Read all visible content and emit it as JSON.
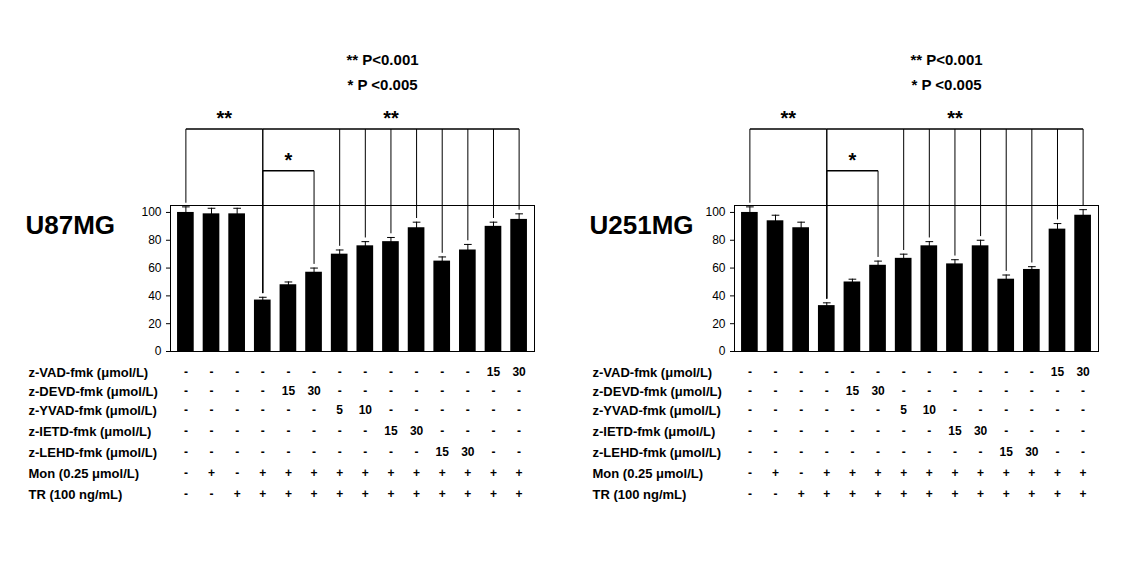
{
  "chart_data": [
    {
      "type": "bar",
      "title": "U87MG",
      "subtitle_lines": [
        "** P<0.001",
        "* P <0.005"
      ],
      "categories": [
        null,
        null,
        null,
        null,
        null,
        null,
        null,
        null,
        null,
        null,
        null,
        null,
        null,
        null
      ],
      "values": [
        100,
        99,
        99,
        37,
        48,
        57,
        70,
        76,
        79,
        89,
        65,
        73,
        90,
        95
      ],
      "errors": [
        4,
        4,
        4,
        2,
        2,
        3,
        3,
        3,
        3,
        4,
        3,
        4,
        3,
        4
      ],
      "color": "#000000",
      "ylim": [
        0,
        105
      ],
      "yticks": [
        0,
        20,
        40,
        60,
        80,
        100
      ],
      "grid": false,
      "tick_labels": "y",
      "brackets": [
        {
          "label": "**",
          "bars": [
            0,
            3
          ]
        },
        {
          "label": "*",
          "bars": [
            3,
            5
          ]
        },
        {
          "label": "**",
          "bars": [
            3,
            6,
            7,
            8,
            9,
            10,
            11,
            12,
            13
          ]
        }
      ],
      "table": {
        "rows": [
          {
            "label": "z-VAD-fmk (μmol/L)",
            "cells": [
              "-",
              "-",
              "-",
              "-",
              "-",
              "-",
              "-",
              "-",
              "-",
              "-",
              "-",
              "-",
              "15",
              "30"
            ]
          },
          {
            "label": "z-DEVD-fmk (μmol/L)",
            "cells": [
              "-",
              "-",
              "-",
              "-",
              "15",
              "30",
              "-",
              "-",
              "-",
              "-",
              "-",
              "-",
              "-",
              "-"
            ]
          },
          {
            "label": "z-YVAD-fmk (μmol/L)",
            "cells": [
              "-",
              "-",
              "-",
              "-",
              "-",
              "-",
              "5",
              "10",
              "-",
              "-",
              "-",
              "-",
              "-",
              "-"
            ]
          },
          {
            "label": "z-IETD-fmk (μmol/L)",
            "cells": [
              "-",
              "-",
              "-",
              "-",
              "-",
              "-",
              "-",
              "-",
              "15",
              "30",
              "-",
              "-",
              "-",
              "-"
            ]
          },
          {
            "label": "z-LEHD-fmk (μmol/L)",
            "cells": [
              "-",
              "-",
              "-",
              "-",
              "-",
              "-",
              "-",
              "-",
              "-",
              "-",
              "15",
              "30",
              "-",
              "-"
            ]
          },
          {
            "label": "Mon (0.25 μmol/L)",
            "cells": [
              "-",
              "+",
              "-",
              "+",
              "+",
              "+",
              "+",
              "+",
              "+",
              "+",
              "+",
              "+",
              "+",
              "+"
            ]
          },
          {
            "label": "TR (100 ng/mL)",
            "cells": [
              "-",
              "-",
              "+",
              "+",
              "+",
              "+",
              "+",
              "+",
              "+",
              "+",
              "+",
              "+",
              "+",
              "+"
            ]
          }
        ]
      }
    },
    {
      "type": "bar",
      "title": "U251MG",
      "subtitle_lines": [
        "** P<0.001",
        "* P <0.005"
      ],
      "categories": [
        null,
        null,
        null,
        null,
        null,
        null,
        null,
        null,
        null,
        null,
        null,
        null,
        null,
        null
      ],
      "values": [
        100,
        94,
        89,
        33,
        50,
        62,
        67,
        76,
        63,
        76,
        52,
        59,
        88,
        98
      ],
      "errors": [
        4,
        4,
        4,
        2,
        2,
        3,
        3,
        3,
        3,
        4,
        3,
        2,
        4,
        4
      ],
      "color": "#000000",
      "ylim": [
        0,
        105
      ],
      "yticks": [
        0,
        20,
        40,
        60,
        80,
        100
      ],
      "grid": false,
      "tick_labels": "y",
      "brackets": [
        {
          "label": "**",
          "bars": [
            0,
            3
          ]
        },
        {
          "label": "*",
          "bars": [
            3,
            5
          ]
        },
        {
          "label": "**",
          "bars": [
            3,
            6,
            7,
            8,
            9,
            10,
            11,
            12,
            13
          ]
        }
      ],
      "table": {
        "rows": [
          {
            "label": "z-VAD-fmk (μmol/L)",
            "cells": [
              "-",
              "-",
              "-",
              "-",
              "-",
              "-",
              "-",
              "-",
              "-",
              "-",
              "-",
              "-",
              "15",
              "30"
            ]
          },
          {
            "label": "z-DEVD-fmk (μmol/L)",
            "cells": [
              "-",
              "-",
              "-",
              "-",
              "15",
              "30",
              "-",
              "-",
              "-",
              "-",
              "-",
              "-",
              "-",
              "-"
            ]
          },
          {
            "label": "z-YVAD-fmk (μmol/L)",
            "cells": [
              "-",
              "-",
              "-",
              "-",
              "-",
              "-",
              "5",
              "10",
              "-",
              "-",
              "-",
              "-",
              "-",
              "-"
            ]
          },
          {
            "label": "z-IETD-fmk (μmol/L)",
            "cells": [
              "-",
              "-",
              "-",
              "-",
              "-",
              "-",
              "-",
              "-",
              "15",
              "30",
              "-",
              "-",
              "-",
              "-"
            ]
          },
          {
            "label": "z-LEHD-fmk (μmol/L)",
            "cells": [
              "-",
              "-",
              "-",
              "-",
              "-",
              "-",
              "-",
              "-",
              "-",
              "-",
              "15",
              "30",
              "-",
              "-"
            ]
          },
          {
            "label": "Mon (0.25 μmol/L)",
            "cells": [
              "-",
              "+",
              "-",
              "+",
              "+",
              "+",
              "+",
              "+",
              "+",
              "+",
              "+",
              "+",
              "+",
              "+"
            ]
          },
          {
            "label": "TR (100 ng/mL)",
            "cells": [
              "-",
              "-",
              "+",
              "+",
              "+",
              "+",
              "+",
              "+",
              "+",
              "+",
              "+",
              "+",
              "+",
              "+"
            ]
          }
        ]
      }
    }
  ]
}
